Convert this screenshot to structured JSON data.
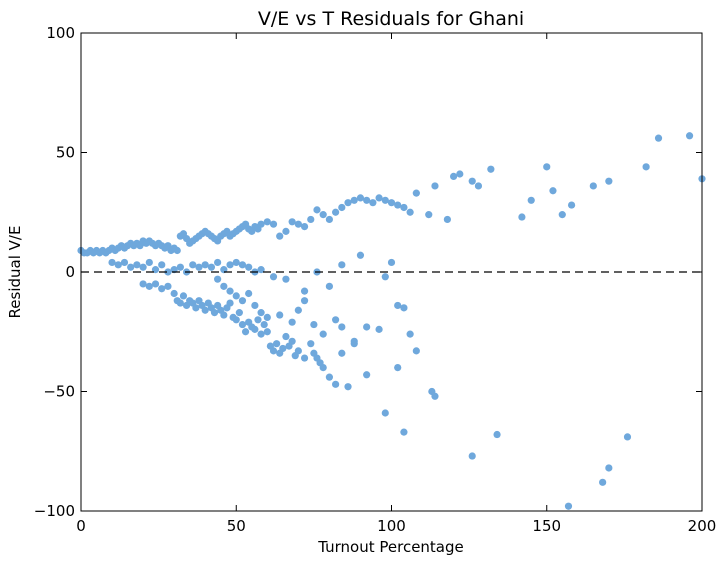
{
  "chart_data": {
    "type": "scatter",
    "title": "V/E vs T Residuals for Ghani",
    "xlabel": "Turnout Percentage",
    "ylabel": "Residual V/E",
    "xlim": [
      0,
      200
    ],
    "ylim": [
      -100,
      100
    ],
    "xticks": [
      0,
      50,
      100,
      150,
      200
    ],
    "yticks": [
      -100,
      -50,
      0,
      50,
      100
    ],
    "xtick_labels": [
      "0",
      "50",
      "100",
      "150",
      "200"
    ],
    "ytick_labels": [
      "−100",
      "−50",
      "0",
      "50",
      "100"
    ],
    "grid": false,
    "reference_line": {
      "y": 0,
      "style": "dashed"
    },
    "marker_color": "#6fa8dc",
    "points": [
      [
        0,
        9
      ],
      [
        1,
        8
      ],
      [
        2,
        8
      ],
      [
        3,
        9
      ],
      [
        4,
        8
      ],
      [
        5,
        9
      ],
      [
        6,
        8
      ],
      [
        7,
        9
      ],
      [
        8,
        8
      ],
      [
        9,
        9
      ],
      [
        10,
        10
      ],
      [
        11,
        9
      ],
      [
        12,
        10
      ],
      [
        13,
        11
      ],
      [
        14,
        10
      ],
      [
        15,
        11
      ],
      [
        16,
        12
      ],
      [
        17,
        11
      ],
      [
        18,
        12
      ],
      [
        19,
        11
      ],
      [
        20,
        13
      ],
      [
        21,
        12
      ],
      [
        22,
        13
      ],
      [
        23,
        12
      ],
      [
        24,
        11
      ],
      [
        25,
        12
      ],
      [
        26,
        11
      ],
      [
        27,
        10
      ],
      [
        28,
        11
      ],
      [
        29,
        9
      ],
      [
        30,
        10
      ],
      [
        31,
        9
      ],
      [
        32,
        15
      ],
      [
        33,
        16
      ],
      [
        34,
        14
      ],
      [
        35,
        12
      ],
      [
        36,
        13
      ],
      [
        37,
        14
      ],
      [
        38,
        15
      ],
      [
        39,
        16
      ],
      [
        40,
        17
      ],
      [
        41,
        16
      ],
      [
        42,
        15
      ],
      [
        43,
        14
      ],
      [
        44,
        13
      ],
      [
        45,
        15
      ],
      [
        46,
        16
      ],
      [
        47,
        17
      ],
      [
        48,
        15
      ],
      [
        49,
        16
      ],
      [
        50,
        17
      ],
      [
        51,
        18
      ],
      [
        52,
        19
      ],
      [
        53,
        20
      ],
      [
        54,
        18
      ],
      [
        55,
        17
      ],
      [
        56,
        19
      ],
      [
        57,
        18
      ],
      [
        58,
        20
      ],
      [
        60,
        21
      ],
      [
        62,
        20
      ],
      [
        64,
        15
      ],
      [
        66,
        17
      ],
      [
        68,
        21
      ],
      [
        70,
        20
      ],
      [
        72,
        19
      ],
      [
        74,
        22
      ],
      [
        76,
        26
      ],
      [
        78,
        24
      ],
      [
        80,
        22
      ],
      [
        82,
        25
      ],
      [
        84,
        27
      ],
      [
        86,
        29
      ],
      [
        88,
        30
      ],
      [
        90,
        31
      ],
      [
        92,
        30
      ],
      [
        94,
        29
      ],
      [
        96,
        31
      ],
      [
        98,
        30
      ],
      [
        100,
        29
      ],
      [
        102,
        28
      ],
      [
        104,
        27
      ],
      [
        106,
        25
      ],
      [
        108,
        33
      ],
      [
        112,
        24
      ],
      [
        114,
        36
      ],
      [
        118,
        22
      ],
      [
        120,
        40
      ],
      [
        122,
        41
      ],
      [
        126,
        38
      ],
      [
        128,
        36
      ],
      [
        132,
        43
      ],
      [
        142,
        23
      ],
      [
        145,
        30
      ],
      [
        150,
        44
      ],
      [
        152,
        34
      ],
      [
        155,
        24
      ],
      [
        158,
        28
      ],
      [
        165,
        36
      ],
      [
        170,
        38
      ],
      [
        182,
        44
      ],
      [
        186,
        56
      ],
      [
        196,
        57
      ],
      [
        200,
        39
      ],
      [
        10,
        4
      ],
      [
        12,
        3
      ],
      [
        14,
        4
      ],
      [
        16,
        2
      ],
      [
        18,
        3
      ],
      [
        20,
        2
      ],
      [
        22,
        4
      ],
      [
        24,
        1
      ],
      [
        26,
        3
      ],
      [
        28,
        0
      ],
      [
        30,
        1
      ],
      [
        32,
        2
      ],
      [
        34,
        0
      ],
      [
        36,
        3
      ],
      [
        38,
        2
      ],
      [
        40,
        3
      ],
      [
        42,
        2
      ],
      [
        44,
        4
      ],
      [
        46,
        1
      ],
      [
        48,
        3
      ],
      [
        50,
        4
      ],
      [
        52,
        3
      ],
      [
        54,
        2
      ],
      [
        56,
        0
      ],
      [
        58,
        1
      ],
      [
        62,
        -2
      ],
      [
        66,
        -3
      ],
      [
        72,
        -8
      ],
      [
        76,
        0
      ],
      [
        80,
        -6
      ],
      [
        84,
        3
      ],
      [
        90,
        7
      ],
      [
        98,
        -2
      ],
      [
        100,
        4
      ],
      [
        20,
        -5
      ],
      [
        22,
        -6
      ],
      [
        24,
        -5
      ],
      [
        26,
        -7
      ],
      [
        28,
        -6
      ],
      [
        30,
        -9
      ],
      [
        31,
        -12
      ],
      [
        32,
        -13
      ],
      [
        33,
        -10
      ],
      [
        34,
        -14
      ],
      [
        35,
        -12
      ],
      [
        36,
        -13
      ],
      [
        37,
        -15
      ],
      [
        38,
        -12
      ],
      [
        39,
        -14
      ],
      [
        40,
        -16
      ],
      [
        41,
        -13
      ],
      [
        42,
        -15
      ],
      [
        43,
        -17
      ],
      [
        44,
        -14
      ],
      [
        45,
        -16
      ],
      [
        46,
        -18
      ],
      [
        47,
        -15
      ],
      [
        48,
        -13
      ],
      [
        49,
        -19
      ],
      [
        50,
        -20
      ],
      [
        51,
        -17
      ],
      [
        52,
        -22
      ],
      [
        53,
        -25
      ],
      [
        54,
        -21
      ],
      [
        55,
        -23
      ],
      [
        56,
        -24
      ],
      [
        57,
        -20
      ],
      [
        58,
        -26
      ],
      [
        59,
        -22
      ],
      [
        60,
        -25
      ],
      [
        61,
        -31
      ],
      [
        62,
        -33
      ],
      [
        63,
        -30
      ],
      [
        64,
        -34
      ],
      [
        65,
        -32
      ],
      [
        66,
        -27
      ],
      [
        67,
        -31
      ],
      [
        68,
        -29
      ],
      [
        69,
        -35
      ],
      [
        70,
        -33
      ],
      [
        72,
        -36
      ],
      [
        74,
        -30
      ],
      [
        75,
        -34
      ],
      [
        76,
        -36
      ],
      [
        77,
        -38
      ],
      [
        78,
        -40
      ],
      [
        80,
        -44
      ],
      [
        82,
        -47
      ],
      [
        84,
        -34
      ],
      [
        86,
        -48
      ],
      [
        88,
        -30
      ],
      [
        92,
        -43
      ],
      [
        98,
        -59
      ],
      [
        102,
        -40
      ],
      [
        104,
        -67
      ],
      [
        106,
        -26
      ],
      [
        108,
        -33
      ],
      [
        113,
        -50
      ],
      [
        114,
        -52
      ],
      [
        134,
        -68
      ],
      [
        126,
        -77
      ],
      [
        157,
        -98
      ],
      [
        168,
        -88
      ],
      [
        170,
        -82
      ],
      [
        176,
        -69
      ],
      [
        44,
        -3
      ],
      [
        46,
        -6
      ],
      [
        48,
        -8
      ],
      [
        50,
        -10
      ],
      [
        52,
        -12
      ],
      [
        54,
        -9
      ],
      [
        56,
        -14
      ],
      [
        58,
        -17
      ],
      [
        60,
        -19
      ],
      [
        64,
        -18
      ],
      [
        68,
        -21
      ],
      [
        70,
        -16
      ],
      [
        72,
        -12
      ],
      [
        75,
        -22
      ],
      [
        78,
        -26
      ],
      [
        82,
        -20
      ],
      [
        84,
        -23
      ],
      [
        88,
        -29
      ],
      [
        92,
        -23
      ],
      [
        96,
        -24
      ],
      [
        102,
        -14
      ],
      [
        104,
        -15
      ]
    ]
  }
}
